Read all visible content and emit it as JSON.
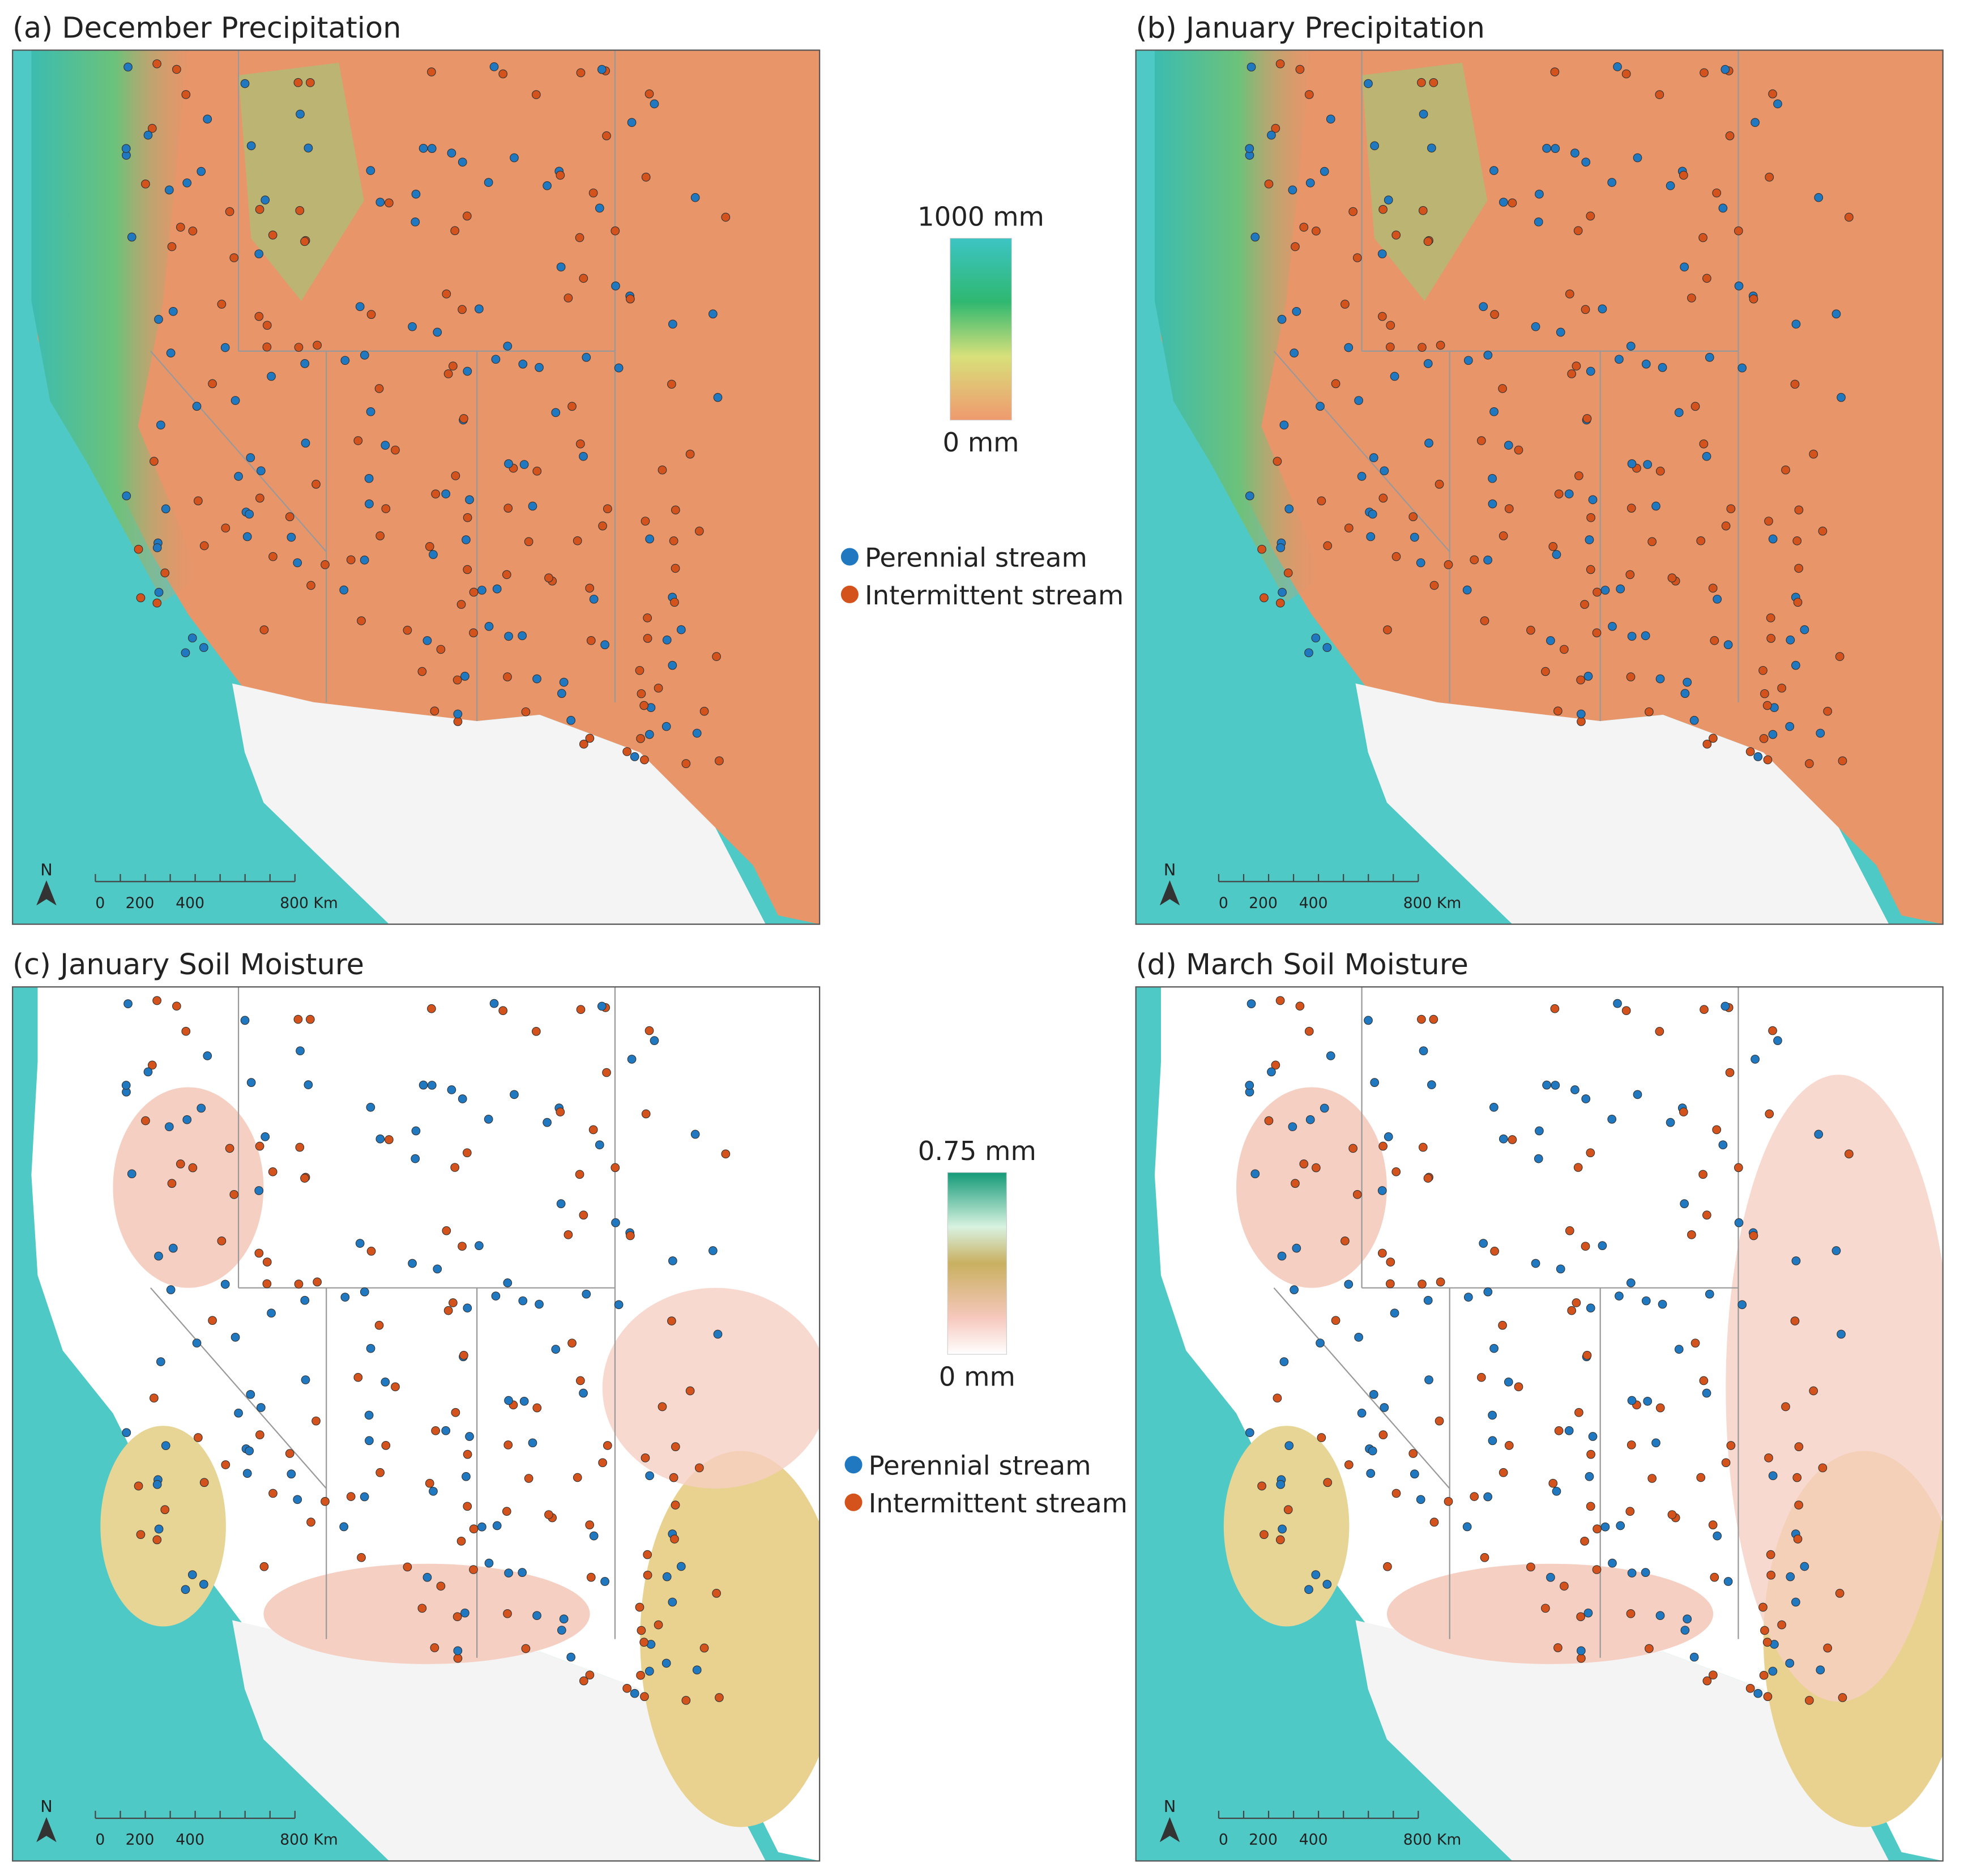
{
  "panels": [
    {
      "title": "(a) December Precipitation",
      "scale_bar": {
        "north": "N",
        "labels": [
          "0",
          "200",
          "400",
          "800 Km"
        ]
      }
    },
    {
      "title": "(b) January Precipitation",
      "scale_bar": {
        "north": "N",
        "labels": [
          "0",
          "200",
          "400",
          "800 Km"
        ]
      }
    },
    {
      "title": "(c) January Soil Moisture",
      "scale_bar": {
        "north": "N",
        "labels": [
          "0",
          "200",
          "400",
          "800 Km"
        ]
      }
    },
    {
      "title": "(d) March Soil Moisture",
      "scale_bar": {
        "north": "N",
        "labels": [
          "0",
          "200",
          "400",
          "800 Km"
        ]
      }
    }
  ],
  "legends": [
    {
      "colorbar": {
        "max": "1000 mm",
        "min": "0 mm"
      },
      "items": [
        "Perennial stream",
        "Intermittent stream"
      ]
    },
    {
      "colorbar": {
        "max": "0.75 mm",
        "min": "0 mm"
      },
      "items": [
        "Perennial stream",
        "Intermittent stream"
      ]
    }
  ]
}
